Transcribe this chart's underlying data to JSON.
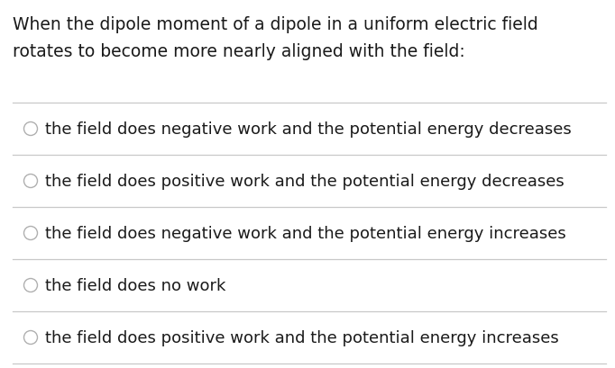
{
  "background_color": "#ffffff",
  "question_line1": "When the dipole moment of a dipole in a uniform electric field",
  "question_line2": "rotates to become more nearly aligned with the field:",
  "options": [
    "the field does negative work and the potential energy decreases",
    "the field does positive work and the potential energy decreases",
    "the field does negative work and the potential energy increases",
    "the field does no work",
    "the field does positive work and the potential energy increases"
  ],
  "text_color": "#1a1a1a",
  "line_color": "#c8c8c8",
  "circle_color": "#b0b0b0",
  "question_fontsize": 13.5,
  "option_fontsize": 13.0,
  "fig_width": 6.82,
  "fig_height": 4.1,
  "dpi": 100
}
